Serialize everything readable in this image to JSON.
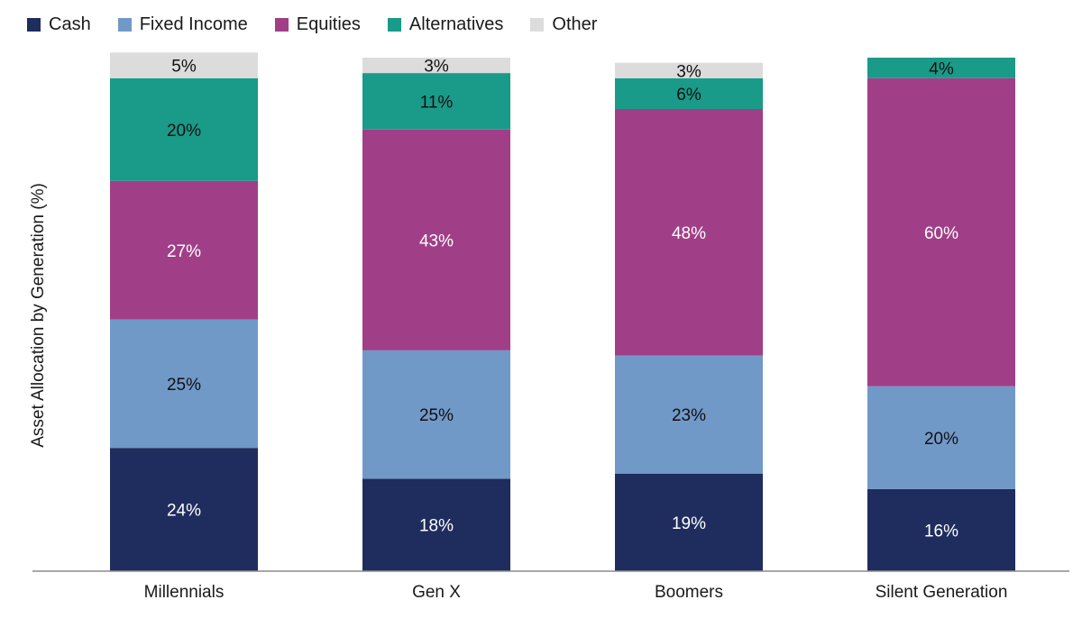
{
  "chart_data": {
    "type": "bar",
    "stacked": true,
    "title": "",
    "xlabel": "",
    "ylabel": "Asset Allocation by Generation (%)",
    "ylim": [
      0,
      100
    ],
    "grid": false,
    "legend_position": "top-left",
    "categories": [
      "Millennials",
      "Gen X",
      "Boomers",
      "Silent Generation"
    ],
    "series": [
      {
        "name": "Cash",
        "color": "#1f2d5e",
        "label_color": "#ffffff",
        "values": [
          24,
          18,
          19,
          16
        ]
      },
      {
        "name": "Fixed Income",
        "color": "#7199c8",
        "label_color": "#111111",
        "values": [
          25,
          25,
          23,
          20
        ]
      },
      {
        "name": "Equities",
        "color": "#a03f87",
        "label_color": "#ffffff",
        "values": [
          27,
          43,
          48,
          60
        ]
      },
      {
        "name": "Alternatives",
        "color": "#1a9a88",
        "label_color": "#111111",
        "values": [
          20,
          11,
          6,
          4
        ]
      },
      {
        "name": "Other",
        "color": "#dcdcdc",
        "label_color": "#111111",
        "values": [
          5,
          3,
          3,
          0
        ]
      }
    ],
    "data_labels": [
      [
        "24%",
        "18%",
        "19%",
        "16%"
      ],
      [
        "25%",
        "25%",
        "23%",
        "20%"
      ],
      [
        "27%",
        "43%",
        "48%",
        "60%"
      ],
      [
        "20%",
        "11%",
        "6%",
        "4%"
      ],
      [
        "5%",
        "3%",
        "3%",
        ""
      ]
    ]
  }
}
